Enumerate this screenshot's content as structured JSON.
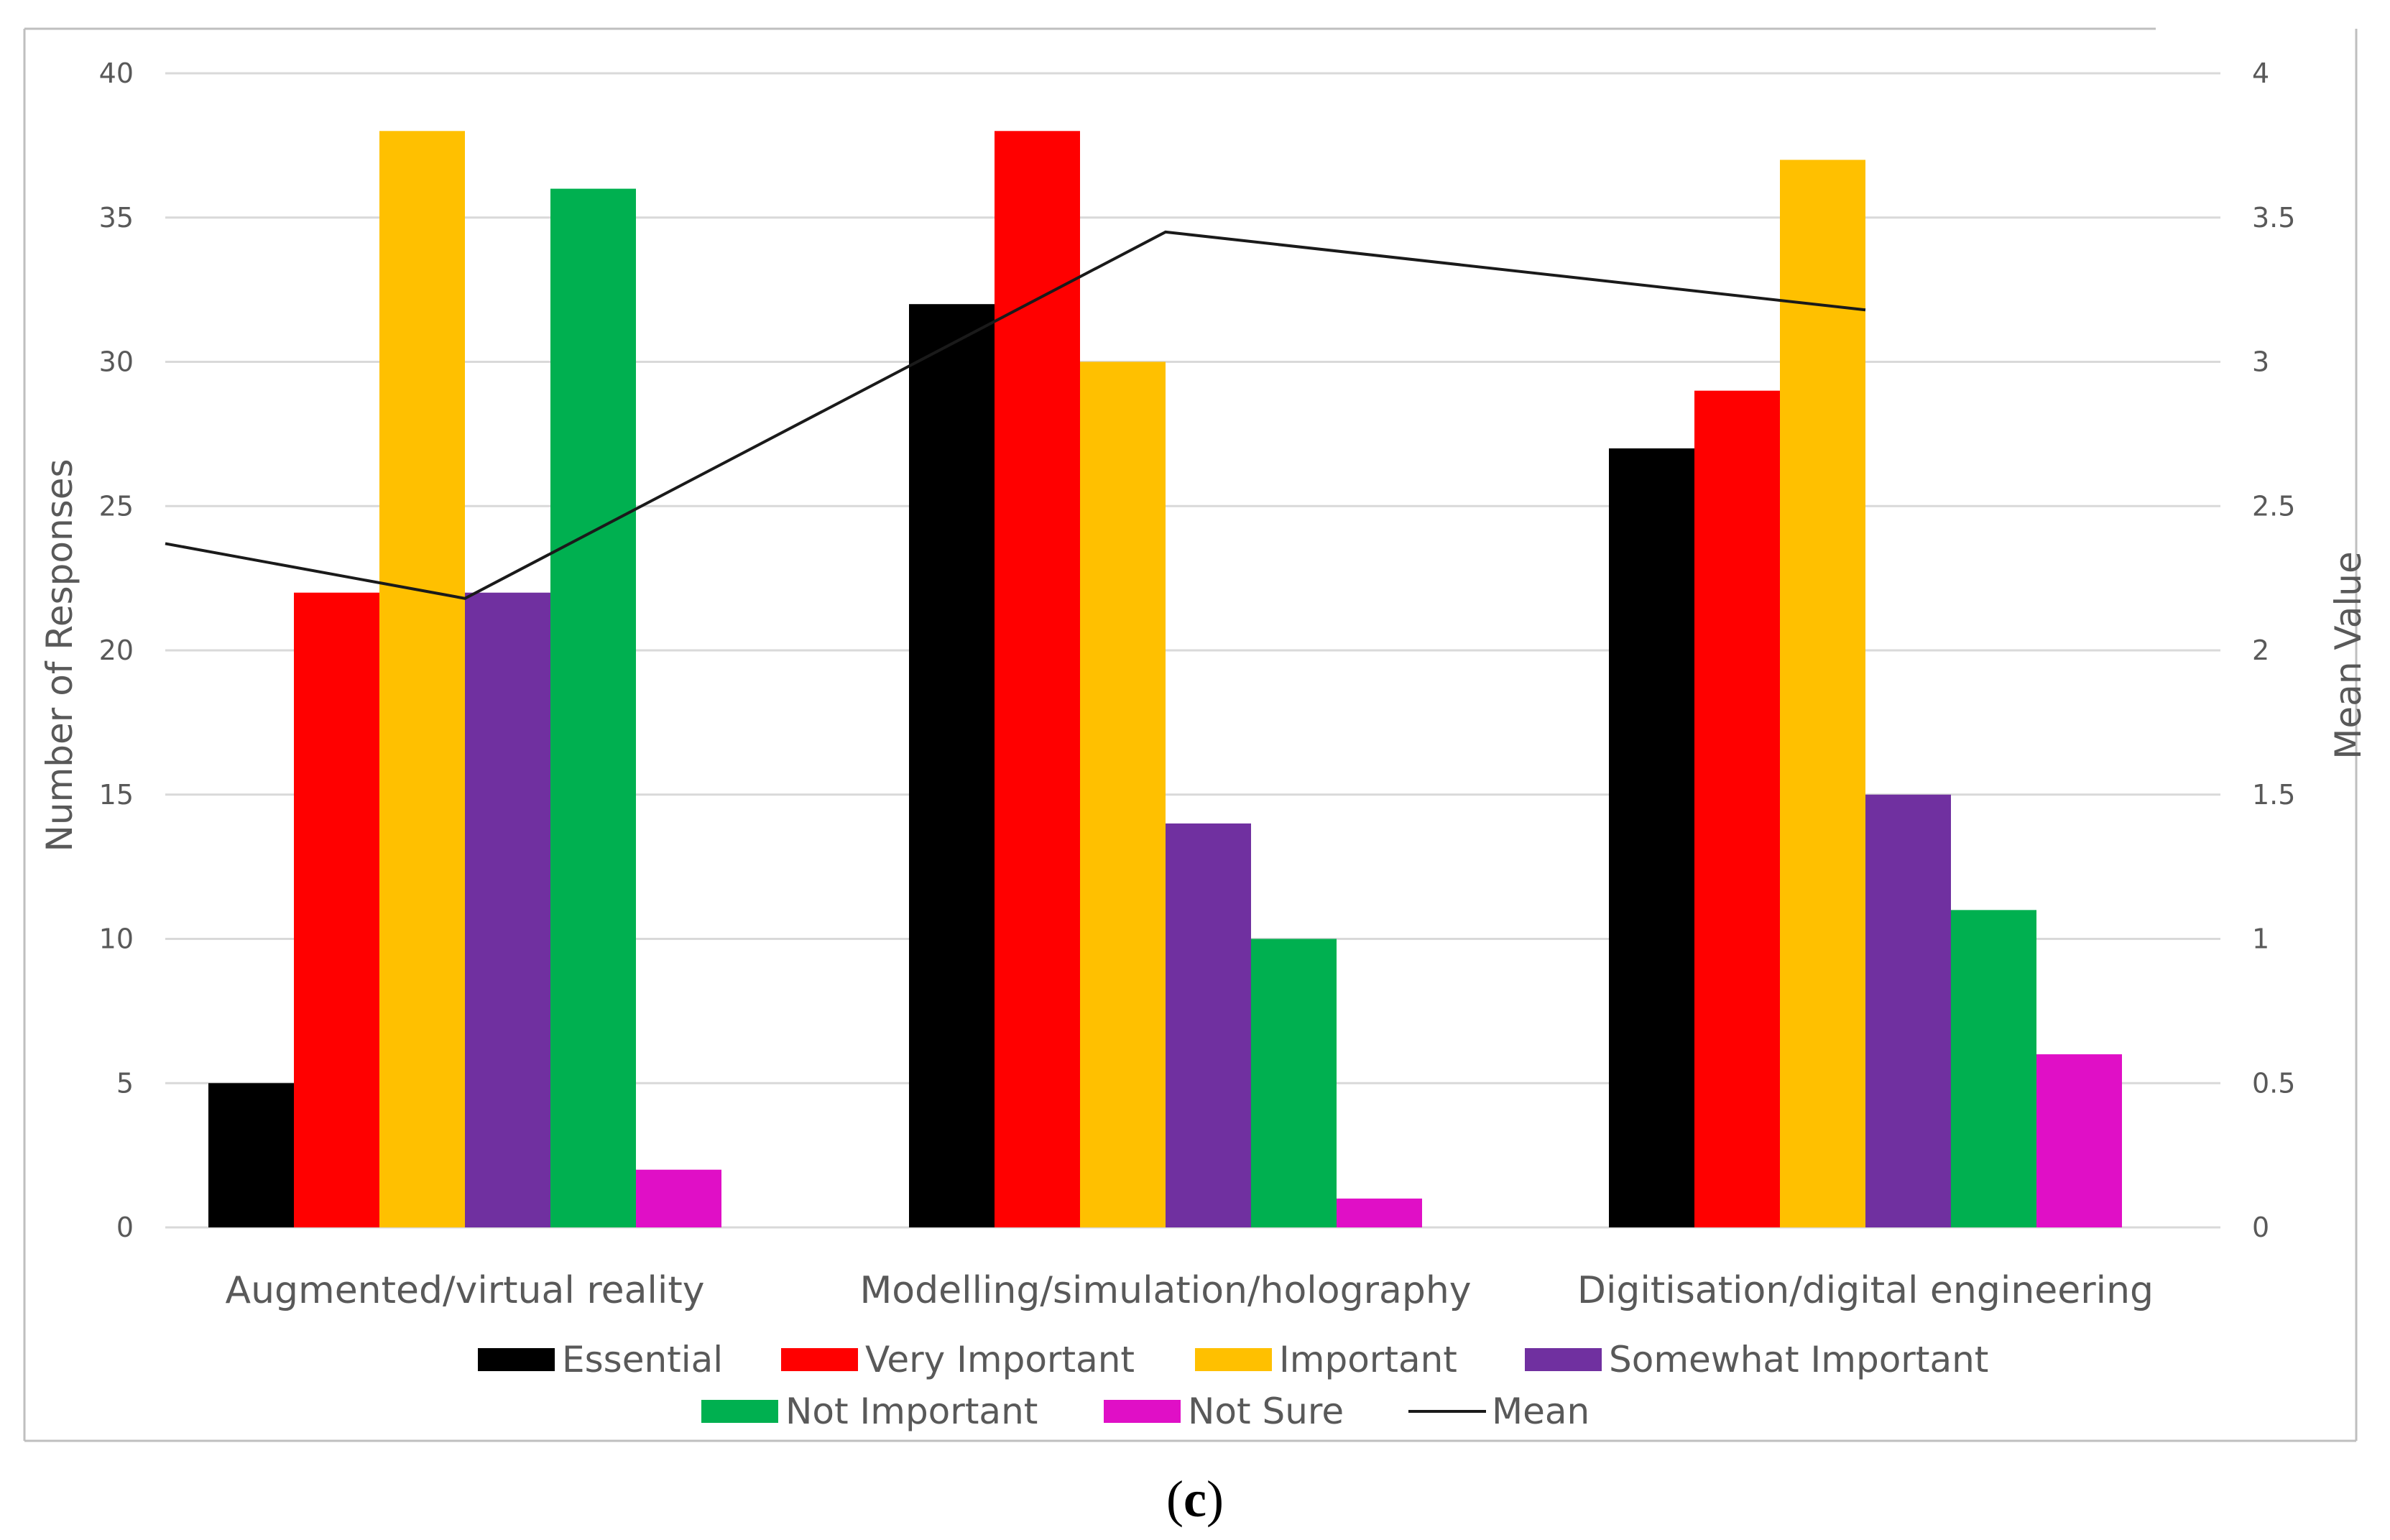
{
  "chart_data": {
    "type": "bar",
    "categories": [
      "Augmented/virtual reality",
      "Modelling/simulation/holography",
      "Digitisation/digital engineering"
    ],
    "series": [
      {
        "name": "Essential",
        "color": "#000000",
        "values": [
          5,
          32,
          27
        ]
      },
      {
        "name": "Very Important",
        "color": "#ff0000",
        "values": [
          22,
          38,
          29
        ]
      },
      {
        "name": "Important",
        "color": "#ffc000",
        "values": [
          38,
          30,
          37
        ]
      },
      {
        "name": "Somewhat Important",
        "color": "#7030a0",
        "values": [
          22,
          14,
          15
        ]
      },
      {
        "name": "Not Important",
        "color": "#00b050",
        "values": [
          36,
          10,
          11
        ]
      },
      {
        "name": "Not Sure",
        "color": "#e00fc6",
        "values": [
          2,
          1,
          6
        ]
      }
    ],
    "mean_series": {
      "name": "Mean",
      "color": "#1a1a1a",
      "axis": "secondary",
      "values": [
        2.18,
        3.45,
        3.18
      ],
      "left_edge_value": 2.37
    },
    "ylabel": "Number of Responses",
    "y2label": "Mean Value",
    "ylim": [
      0,
      40
    ],
    "y2lim": [
      0,
      4
    ],
    "y_ticks": [
      "0",
      "5",
      "10",
      "15",
      "20",
      "25",
      "30",
      "35",
      "40"
    ],
    "y2_ticks": [
      "0",
      "0.5",
      "1",
      "1.5",
      "2",
      "2.5",
      "3",
      "3.5",
      "4"
    ],
    "grid": true,
    "legend_position": "bottom"
  },
  "caption": {
    "open": "(",
    "letter": "c",
    "close": ")"
  }
}
